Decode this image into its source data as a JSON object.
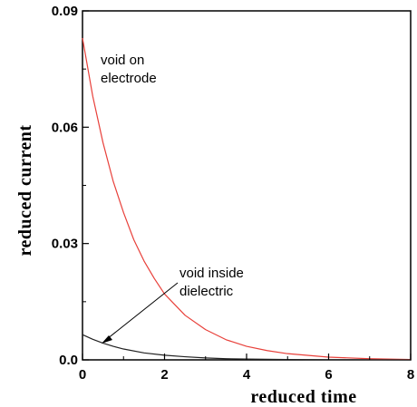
{
  "chart_data": {
    "type": "line",
    "xlabel": "reduced time",
    "ylabel": "reduced current",
    "xlim": [
      0,
      8
    ],
    "ylim": [
      0,
      0.09
    ],
    "x_ticks": [
      0,
      2,
      4,
      6,
      8
    ],
    "x_tick_labels": [
      "0",
      "2",
      "4",
      "6",
      "8"
    ],
    "y_ticks": [
      0,
      0.03,
      0.06,
      0.09
    ],
    "y_tick_labels": [
      "0.0",
      "0.03",
      "0.06",
      "0.09"
    ],
    "grid": false,
    "series": [
      {
        "color": "#e8403a",
        "x": [
          0,
          0.25,
          0.5,
          0.75,
          1.0,
          1.25,
          1.5,
          1.75,
          2.0,
          2.5,
          3.0,
          3.5,
          4.0,
          4.5,
          5.0,
          6.0,
          7.0,
          8.0
        ],
        "y": [
          0.083,
          0.068,
          0.056,
          0.046,
          0.038,
          0.031,
          0.0255,
          0.021,
          0.017,
          0.0115,
          0.0078,
          0.0052,
          0.0035,
          0.0024,
          0.0016,
          0.0007,
          0.0003,
          0.0001
        ]
      },
      {
        "color": "#222222",
        "x": [
          0,
          0.25,
          0.5,
          0.75,
          1.0,
          1.5,
          2.0,
          2.5,
          3.0,
          3.5,
          4.0,
          5.0,
          6.0,
          8.0
        ],
        "y": [
          0.0065,
          0.0053,
          0.0043,
          0.0035,
          0.0028,
          0.0018,
          0.0012,
          0.0008,
          0.0005,
          0.0003,
          0.0002,
          0.0001,
          5e-05,
          0.0
        ]
      }
    ],
    "annotations": [
      {
        "lines": [
          "void on",
          "electrode"
        ]
      },
      {
        "lines": [
          "void inside",
          "dielectric"
        ]
      }
    ]
  }
}
